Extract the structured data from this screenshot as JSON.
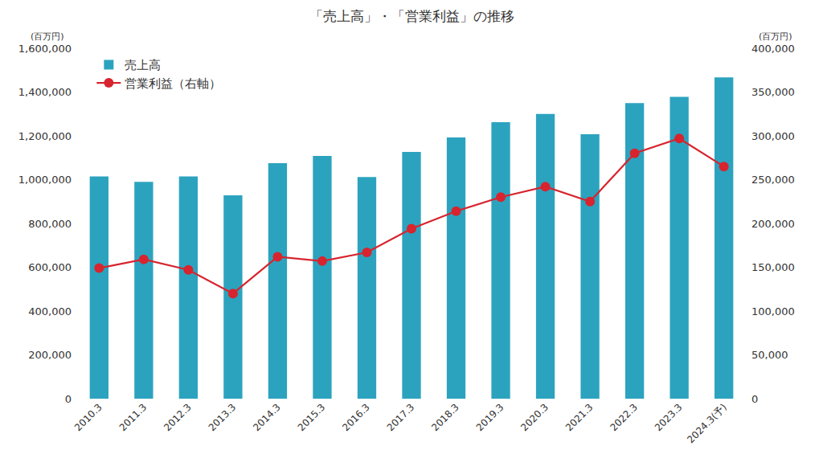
{
  "chart_data": {
    "type": "bar",
    "title": "「売上高」・「営業利益」の推移",
    "ylabel": "(百万円)",
    "y2label": "(百万円)",
    "categories": [
      "2010.3",
      "2011.3",
      "2012.3",
      "2013.3",
      "2014.3",
      "2015.3",
      "2016.3",
      "2017.3",
      "2018.3",
      "2019.3",
      "2020.3",
      "2021.3",
      "2022.3",
      "2023.3",
      "2024.3(予)"
    ],
    "series": [
      {
        "name": "売上高",
        "type": "bar",
        "color": "#2ca3be",
        "values": [
          1015000,
          990000,
          1015000,
          928000,
          1075000,
          1108000,
          1012000,
          1127000,
          1193000,
          1262000,
          1300000,
          1207000,
          1350000,
          1378000,
          1467000
        ]
      },
      {
        "name": "営業利益（右軸）",
        "type": "line",
        "axis": "y2",
        "color": "#d7242e",
        "marker": "circle",
        "line_style": "solid",
        "values": [
          149000,
          159000,
          147000,
          120000,
          162000,
          157000,
          167000,
          194000,
          214000,
          230000,
          242000,
          225000,
          280000,
          297000,
          265000
        ]
      }
    ],
    "ylim": [
      0,
      1600000
    ],
    "yticks": [
      0,
      {
        "value": 200000,
        "label": "200,000"
      },
      {
        "value": 400000,
        "label": "400,000"
      },
      {
        "value": 600000,
        "label": "600,000"
      },
      {
        "value": 800000,
        "label": "800,000"
      },
      {
        "value": 1000000,
        "label": "1,000,000"
      },
      {
        "value": 1200000,
        "label": "1,200,000"
      },
      {
        "value": 1400000,
        "label": "1,400,000"
      },
      {
        "value": 1600000,
        "label": "1,600,000"
      }
    ],
    "y2lim": [
      0,
      400000
    ],
    "y2ticks": [
      0,
      {
        "value": 50000,
        "label": "50,000"
      },
      {
        "value": 100000,
        "label": "100,000"
      },
      {
        "value": 150000,
        "label": "150,000"
      },
      {
        "value": 200000,
        "label": "200,000"
      },
      {
        "value": 250000,
        "label": "250,000"
      },
      {
        "value": 300000,
        "label": "300,000"
      },
      {
        "value": 350000,
        "label": "350,000"
      },
      {
        "value": 400000,
        "label": "400,000"
      }
    ],
    "grid": false,
    "legend": "upper left"
  }
}
